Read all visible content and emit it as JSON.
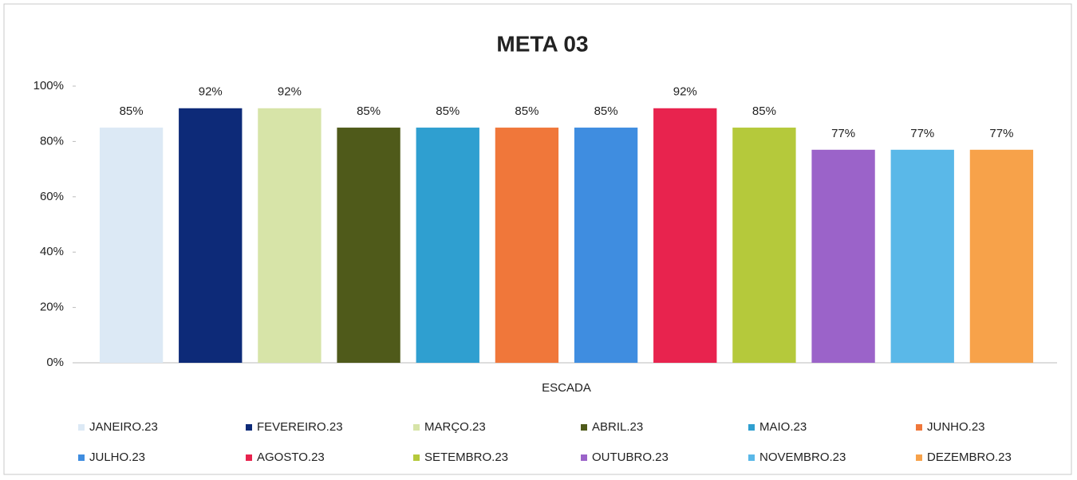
{
  "chart_data": {
    "type": "bar",
    "title": "META 03",
    "categories": [
      "ESCADA"
    ],
    "ylim": [
      0,
      100
    ],
    "yticks": [
      {
        "value": 0,
        "label": "0%"
      },
      {
        "value": 20,
        "label": "20%"
      },
      {
        "value": 40,
        "label": "40%"
      },
      {
        "value": 60,
        "label": "60%"
      },
      {
        "value": 80,
        "label": "80%"
      },
      {
        "value": 100,
        "label": "100%"
      }
    ],
    "grid": false,
    "legend": "bottom",
    "series": [
      {
        "name": "JANEIRO.23",
        "color": "#dce9f5",
        "values": [
          85
        ],
        "value_labels": [
          "85%"
        ]
      },
      {
        "name": "FEVEREIRO.23",
        "color": "#0d2a78",
        "values": [
          92
        ],
        "value_labels": [
          "92%"
        ]
      },
      {
        "name": "MARÇO.23",
        "color": "#d7e4a8",
        "values": [
          92
        ],
        "value_labels": [
          "92%"
        ]
      },
      {
        "name": "ABRIL.23",
        "color": "#4f5a1a",
        "values": [
          85
        ],
        "value_labels": [
          "85%"
        ]
      },
      {
        "name": "MAIO.23",
        "color": "#2f9fd0",
        "values": [
          85
        ],
        "value_labels": [
          "85%"
        ]
      },
      {
        "name": "JUNHO.23",
        "color": "#f0773a",
        "values": [
          85
        ],
        "value_labels": [
          "85%"
        ]
      },
      {
        "name": "JULHO.23",
        "color": "#3f8de0",
        "values": [
          85
        ],
        "value_labels": [
          "85%"
        ]
      },
      {
        "name": "AGOSTO.23",
        "color": "#e8234e",
        "values": [
          92
        ],
        "value_labels": [
          "92%"
        ]
      },
      {
        "name": "SETEMBRO.23",
        "color": "#b5c93b",
        "values": [
          85
        ],
        "value_labels": [
          "85%"
        ]
      },
      {
        "name": "OUTUBRO.23",
        "color": "#9b63c9",
        "values": [
          77
        ],
        "value_labels": [
          "77%"
        ]
      },
      {
        "name": "NOVEMBRO.23",
        "color": "#5ab8e8",
        "values": [
          77
        ],
        "value_labels": [
          "77%"
        ]
      },
      {
        "name": "DEZEMBRO.23",
        "color": "#f7a24a",
        "values": [
          77
        ],
        "value_labels": [
          "77%"
        ]
      }
    ]
  }
}
